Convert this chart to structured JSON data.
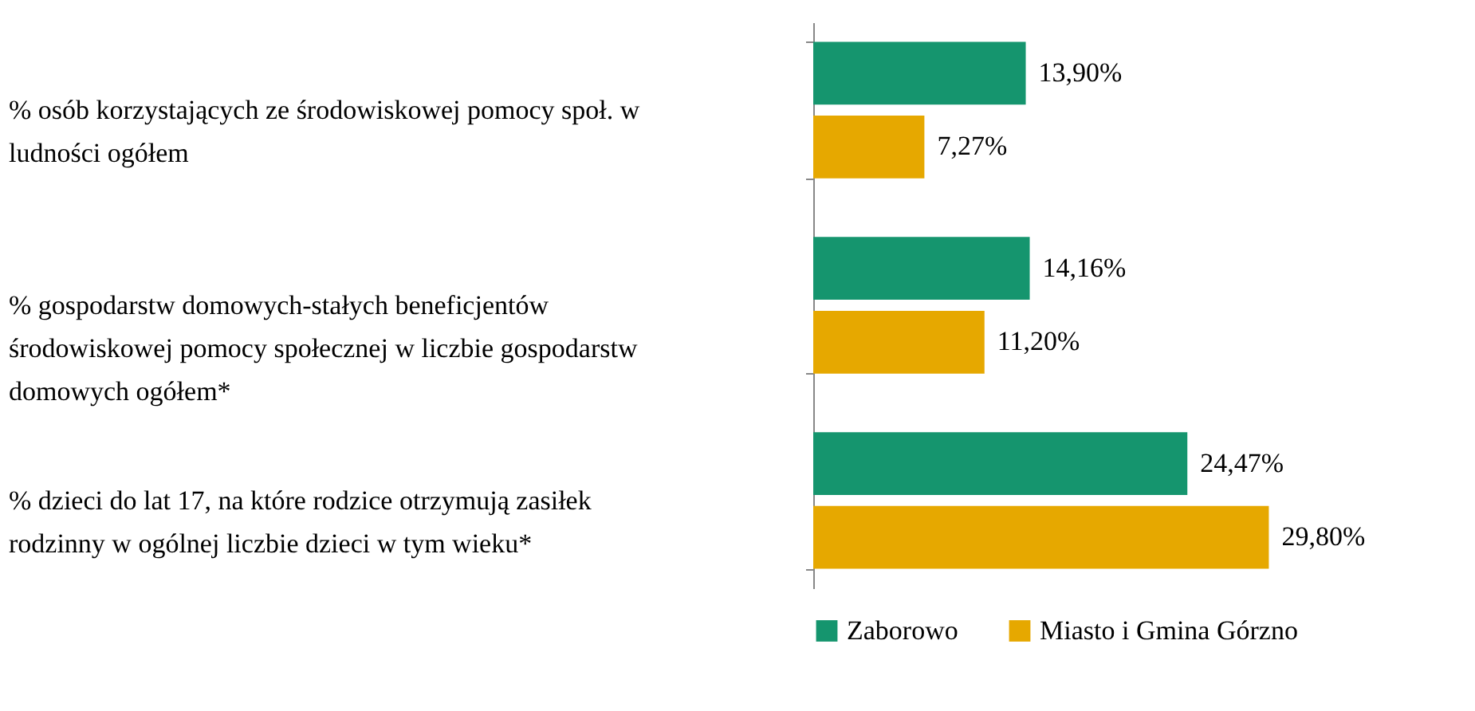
{
  "chart_data": {
    "type": "bar",
    "orientation": "horizontal",
    "tick_labels": "y",
    "legend": "bottom",
    "categories": [
      "% osób korzystających ze środowiskowej pomocy społ. w ludności ogółem",
      "% gospodarstw domowych-stałych beneficjentów środowiskowej pomocy społecznej w liczbie gospodarstw domowych ogółem*",
      "% dzieci do lat 17, na które rodzice otrzymują zasiłek rodzinny w ogólnej liczbie dzieci w tym wieku*"
    ],
    "series": [
      {
        "name": "Zaborowo",
        "color": "#15956e",
        "values": [
          13.9,
          14.16,
          24.47
        ],
        "value_labels": [
          "13,90%",
          "14,16%",
          "24,47%"
        ]
      },
      {
        "name": "Miasto i Gmina Górzno",
        "color": "#e6a800",
        "values": [
          7.27,
          11.2,
          29.8
        ],
        "value_labels": [
          "7,27%",
          "11,20%",
          "29,80%"
        ]
      }
    ]
  }
}
